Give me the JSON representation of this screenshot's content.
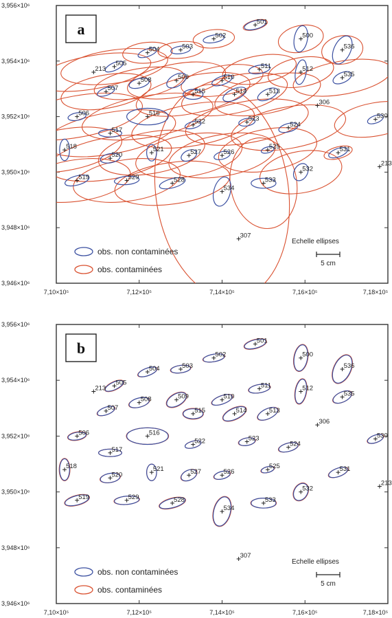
{
  "colors": {
    "blue": "#3a4fa0",
    "red": "#d9502f",
    "frame": "#333333"
  },
  "chart_data": [
    {
      "type": "scatter",
      "panel_label": "a",
      "xlim": [
        710000,
        718000
      ],
      "ylim": [
        3946000,
        3956000
      ],
      "x_ticks": [
        "7,10×10⁵",
        "7,12×10⁵",
        "7,14×10⁵",
        "7,16×10⁵",
        "7,18×10⁵"
      ],
      "y_ticks": [
        "3,956×10⁶",
        "3,954×10⁶",
        "3,952×10⁶",
        "3,950×10⁶",
        "3,948×10⁶",
        "3,946×10⁶"
      ],
      "legend": {
        "blue_label": "obs.  non contaminées",
        "red_label": "obs.  contaminées"
      },
      "scale": {
        "title": "Echelle ellipses",
        "label": "5 cm"
      },
      "points": [
        {
          "id": "501",
          "x": 714800,
          "y": 3955300,
          "bw": 0.27,
          "bh": 0.1,
          "ba": -15,
          "rw": 0.3,
          "rh": 0.11,
          "ra": -15
        },
        {
          "id": "502",
          "x": 713800,
          "y": 3954800,
          "bw": 0.26,
          "bh": 0.09,
          "ba": -10,
          "rw": 0.5,
          "rh": 0.22,
          "ra": -5
        },
        {
          "id": "503",
          "x": 713000,
          "y": 3954400,
          "bw": 0.24,
          "bh": 0.09,
          "ba": -8,
          "rw": 0.55,
          "rh": 0.2,
          "ra": -5
        },
        {
          "id": "504",
          "x": 712200,
          "y": 3954300,
          "bw": 0.24,
          "bh": 0.09,
          "ba": -20,
          "rw": 0.6,
          "rh": 0.25,
          "ra": -5
        },
        {
          "id": "505",
          "x": 711400,
          "y": 3953800,
          "bw": 0.24,
          "bh": 0.09,
          "ba": -25,
          "rw": 1.3,
          "rh": 0.4,
          "ra": -8
        },
        {
          "id": "500",
          "x": 715900,
          "y": 3954800,
          "bw": 0.16,
          "bh": 0.32,
          "ba": 10,
          "rw": 0.55,
          "rh": 0.32,
          "ra": -12
        },
        {
          "id": "536",
          "x": 716900,
          "y": 3954400,
          "bw": 0.2,
          "bh": 0.36,
          "ba": 25,
          "rw": 0.5,
          "rh": 0.34,
          "ra": -10
        },
        {
          "id": "213",
          "x": 710900,
          "y": 3953600,
          "bw": 0,
          "bh": 0,
          "ba": 0,
          "rw": 1.4,
          "rh": 0.4,
          "ra": -10
        },
        {
          "id": "508",
          "x": 712000,
          "y": 3953200,
          "bw": 0.25,
          "bh": 0.11,
          "ba": -15,
          "rw": 1.1,
          "rh": 0.35,
          "ra": -10
        },
        {
          "id": "509",
          "x": 712900,
          "y": 3953300,
          "bw": 0.26,
          "bh": 0.14,
          "ba": -30,
          "rw": 1.2,
          "rh": 0.4,
          "ra": -10
        },
        {
          "id": "510",
          "x": 714000,
          "y": 3953300,
          "bw": 0.26,
          "bh": 0.1,
          "ba": -20,
          "rw": 1.0,
          "rh": 0.35,
          "ra": -10
        },
        {
          "id": "511",
          "x": 714900,
          "y": 3953700,
          "bw": 0.26,
          "bh": 0.1,
          "ba": -10,
          "rw": 0.9,
          "rh": 0.33,
          "ra": -10
        },
        {
          "id": "512",
          "x": 715900,
          "y": 3953600,
          "bw": 0.13,
          "bh": 0.3,
          "ba": 10,
          "rw": 0.8,
          "rh": 0.35,
          "ra": -10
        },
        {
          "id": "535",
          "x": 716900,
          "y": 3953400,
          "bw": 0.24,
          "bh": 0.12,
          "ba": -25,
          "rw": 1.2,
          "rh": 0.4,
          "ra": -10
        },
        {
          "id": "507",
          "x": 711200,
          "y": 3952900,
          "bw": 0.22,
          "bh": 0.09,
          "ba": -20,
          "rw": 1.1,
          "rh": 0.4,
          "ra": -10
        },
        {
          "id": "515",
          "x": 713300,
          "y": 3952800,
          "bw": 0.24,
          "bh": 0.12,
          "ba": 0,
          "rw": 1.4,
          "rh": 0.45,
          "ra": -12
        },
        {
          "id": "514",
          "x": 714300,
          "y": 3952800,
          "bw": 0.3,
          "bh": 0.13,
          "ba": -25,
          "rw": 1.3,
          "rh": 0.45,
          "ra": -12
        },
        {
          "id": "513",
          "x": 715100,
          "y": 3952800,
          "bw": 0.26,
          "bh": 0.12,
          "ba": -25,
          "rw": 1.3,
          "rh": 0.45,
          "ra": -12
        },
        {
          "id": "306",
          "x": 716300,
          "y": 3952400,
          "bw": 0,
          "bh": 0,
          "ba": 0,
          "rw": 0,
          "rh": 0,
          "ra": 0
        },
        {
          "id": "506",
          "x": 710500,
          "y": 3952000,
          "bw": 0.22,
          "bh": 0.09,
          "ba": -10,
          "rw": 1.6,
          "rh": 0.5,
          "ra": -10
        },
        {
          "id": "516",
          "x": 712200,
          "y": 3952000,
          "bw": 0.5,
          "bh": 0.2,
          "ba": 0,
          "rw": 1.6,
          "rh": 0.5,
          "ra": -10
        },
        {
          "id": "522",
          "x": 713300,
          "y": 3951700,
          "bw": 0.2,
          "bh": 0.08,
          "ba": -15,
          "rw": 1.5,
          "rh": 0.5,
          "ra": -10
        },
        {
          "id": "523",
          "x": 714600,
          "y": 3951800,
          "bw": 0.2,
          "bh": 0.09,
          "ba": -10,
          "rw": 1.5,
          "rh": 0.5,
          "ra": -10
        },
        {
          "id": "524",
          "x": 715600,
          "y": 3951600,
          "bw": 0.24,
          "bh": 0.1,
          "ba": -15,
          "rw": 1.4,
          "rh": 0.5,
          "ra": -10
        },
        {
          "id": "530",
          "x": 717700,
          "y": 3951900,
          "bw": 0.2,
          "bh": 0.09,
          "ba": -20,
          "rw": 1.0,
          "rh": 0.4,
          "ra": -10
        },
        {
          "id": "517",
          "x": 711300,
          "y": 3951400,
          "bw": 0.28,
          "bh": 0.09,
          "ba": 0,
          "rw": 1.6,
          "rh": 0.5,
          "ra": -10
        },
        {
          "id": "518",
          "x": 710200,
          "y": 3950800,
          "bw": 0.12,
          "bh": 0.26,
          "ba": 0,
          "rw": 1.4,
          "rh": 0.5,
          "ra": -10
        },
        {
          "id": "520",
          "x": 711300,
          "y": 3950500,
          "bw": 0.24,
          "bh": 0.11,
          "ba": -10,
          "rw": 1.5,
          "rh": 0.5,
          "ra": -10
        },
        {
          "id": "521",
          "x": 712300,
          "y": 3950700,
          "bw": 0.12,
          "bh": 0.2,
          "ba": 0,
          "rw": 1.3,
          "rh": 0.5,
          "ra": -10
        },
        {
          "id": "527",
          "x": 713200,
          "y": 3950600,
          "bw": 0.2,
          "bh": 0.12,
          "ba": -25,
          "rw": 1.3,
          "rh": 0.5,
          "ra": -10
        },
        {
          "id": "526",
          "x": 714000,
          "y": 3950600,
          "bw": 0.2,
          "bh": 0.09,
          "ba": -15,
          "rw": 1.3,
          "rh": 0.5,
          "ra": -10
        },
        {
          "id": "525",
          "x": 715100,
          "y": 3950800,
          "bw": 0.16,
          "bh": 0.07,
          "ba": -15,
          "rw": 1.2,
          "rh": 0.5,
          "ra": -10
        },
        {
          "id": "531",
          "x": 716800,
          "y": 3950700,
          "bw": 0.24,
          "bh": 0.1,
          "ba": -20,
          "rw": 0.35,
          "rh": 0.14,
          "ra": -15
        },
        {
          "id": "532",
          "x": 715900,
          "y": 3950000,
          "bw": 0.16,
          "bh": 0.22,
          "ba": 30,
          "rw": 1.0,
          "rh": 0.5,
          "ra": -10
        },
        {
          "id": "213b",
          "label": "213",
          "x": 717800,
          "y": 3950200,
          "bw": 0,
          "bh": 0,
          "ba": 0,
          "rw": 0,
          "rh": 0,
          "ra": 0
        },
        {
          "id": "519",
          "x": 710500,
          "y": 3949700,
          "bw": 0.3,
          "bh": 0.11,
          "ba": -15,
          "rw": 1.3,
          "rh": 0.5,
          "ra": -8
        },
        {
          "id": "529",
          "x": 711700,
          "y": 3949700,
          "bw": 0.3,
          "bh": 0.1,
          "ba": -5,
          "rw": 1.3,
          "rh": 0.5,
          "ra": -8
        },
        {
          "id": "528",
          "x": 712800,
          "y": 3949600,
          "bw": 0.32,
          "bh": 0.11,
          "ba": -15,
          "rw": 1.4,
          "rh": 0.5,
          "ra": -8
        },
        {
          "id": "534",
          "x": 714000,
          "y": 3949300,
          "bw": 0.2,
          "bh": 0.36,
          "ba": 15,
          "rw": 1.6,
          "rh": 2.6,
          "ra": -8
        },
        {
          "id": "533",
          "x": 715000,
          "y": 3949600,
          "bw": 0.3,
          "bh": 0.12,
          "ba": 0,
          "rw": 0.8,
          "rh": 1.1,
          "ra": -10
        },
        {
          "id": "307",
          "x": 714400,
          "y": 3947600,
          "bw": 0,
          "bh": 0,
          "ba": 0,
          "rw": 0,
          "rh": 0,
          "ra": 0
        }
      ]
    },
    {
      "type": "scatter",
      "panel_label": "b",
      "xlim": [
        710000,
        718000
      ],
      "ylim": [
        3946000,
        3956000
      ],
      "x_ticks": [
        "7,10×10⁵",
        "7,12×10⁵",
        "7,14×10⁵",
        "7,16×10⁵",
        "7,18×10⁵"
      ],
      "y_ticks": [
        "3,956×10⁶",
        "3,954×10⁶",
        "3,952×10⁶",
        "3,950×10⁶",
        "3,948×10⁶",
        "3,946×10⁶"
      ],
      "legend": {
        "blue_label": "obs.  non contaminées",
        "red_label": "obs.  contaminées"
      },
      "scale": {
        "title": "Echelle ellipses",
        "label": "5 cm"
      },
      "points": [
        {
          "id": "501",
          "x": 714800,
          "y": 3955300,
          "bw": 0.27,
          "bh": 0.1,
          "ba": -15,
          "rw": 0.28,
          "rh": 0.11,
          "ra": -15
        },
        {
          "id": "502",
          "x": 713800,
          "y": 3954800,
          "bw": 0.26,
          "bh": 0.09,
          "ba": -10,
          "rw": 0.27,
          "rh": 0.09,
          "ra": -10
        },
        {
          "id": "503",
          "x": 713000,
          "y": 3954400,
          "bw": 0.24,
          "bh": 0.09,
          "ba": -8,
          "rw": 0.25,
          "rh": 0.09,
          "ra": -8
        },
        {
          "id": "504",
          "x": 712200,
          "y": 3954300,
          "bw": 0.24,
          "bh": 0.09,
          "ba": -20,
          "rw": 0.25,
          "rh": 0.09,
          "ra": -20
        },
        {
          "id": "505",
          "x": 711400,
          "y": 3953800,
          "bw": 0.24,
          "bh": 0.09,
          "ba": -25,
          "rw": 0.25,
          "rh": 0.1,
          "ra": -25
        },
        {
          "id": "500",
          "x": 715900,
          "y": 3954800,
          "bw": 0.16,
          "bh": 0.32,
          "ba": 10,
          "rw": 0.17,
          "rh": 0.33,
          "ra": 10
        },
        {
          "id": "536",
          "x": 716900,
          "y": 3954400,
          "bw": 0.2,
          "bh": 0.36,
          "ba": 25,
          "rw": 0.21,
          "rh": 0.37,
          "ra": 25
        },
        {
          "id": "213",
          "x": 710900,
          "y": 3953600,
          "bw": 0,
          "bh": 0,
          "ba": 0,
          "rw": 0,
          "rh": 0,
          "ra": 0
        },
        {
          "id": "508",
          "x": 712000,
          "y": 3953200,
          "bw": 0.25,
          "bh": 0.11,
          "ba": -15,
          "rw": 0.26,
          "rh": 0.11,
          "ra": -15
        },
        {
          "id": "509",
          "x": 712900,
          "y": 3953300,
          "bw": 0.26,
          "bh": 0.14,
          "ba": -30,
          "rw": 0.27,
          "rh": 0.15,
          "ra": -30
        },
        {
          "id": "510",
          "x": 714000,
          "y": 3953300,
          "bw": 0.26,
          "bh": 0.1,
          "ba": -20,
          "rw": 0.27,
          "rh": 0.1,
          "ra": -20
        },
        {
          "id": "511",
          "x": 714900,
          "y": 3953700,
          "bw": 0.26,
          "bh": 0.1,
          "ba": -10,
          "rw": 0.27,
          "rh": 0.1,
          "ra": -10
        },
        {
          "id": "512",
          "x": 715900,
          "y": 3953600,
          "bw": 0.13,
          "bh": 0.3,
          "ba": 10,
          "rw": 0.14,
          "rh": 0.31,
          "ra": 10
        },
        {
          "id": "535",
          "x": 716900,
          "y": 3953400,
          "bw": 0.24,
          "bh": 0.12,
          "ba": -25,
          "rw": 0.25,
          "rh": 0.12,
          "ra": -25
        },
        {
          "id": "507",
          "x": 711200,
          "y": 3952900,
          "bw": 0.22,
          "bh": 0.09,
          "ba": -20,
          "rw": 0.23,
          "rh": 0.09,
          "ra": -20
        },
        {
          "id": "515",
          "x": 713300,
          "y": 3952800,
          "bw": 0.24,
          "bh": 0.12,
          "ba": 0,
          "rw": 0.25,
          "rh": 0.13,
          "ra": 0
        },
        {
          "id": "514",
          "x": 714300,
          "y": 3952800,
          "bw": 0.3,
          "bh": 0.13,
          "ba": -25,
          "rw": 0.31,
          "rh": 0.14,
          "ra": -25
        },
        {
          "id": "513",
          "x": 715100,
          "y": 3952800,
          "bw": 0.26,
          "bh": 0.12,
          "ba": -25,
          "rw": 0.27,
          "rh": 0.12,
          "ra": -25
        },
        {
          "id": "306",
          "x": 716300,
          "y": 3952400,
          "bw": 0,
          "bh": 0,
          "ba": 0,
          "rw": 0,
          "rh": 0,
          "ra": 0
        },
        {
          "id": "506",
          "x": 710500,
          "y": 3952000,
          "bw": 0.22,
          "bh": 0.09,
          "ba": -10,
          "rw": 0.23,
          "rh": 0.1,
          "ra": -10
        },
        {
          "id": "516",
          "x": 712200,
          "y": 3952000,
          "bw": 0.5,
          "bh": 0.2,
          "ba": 0,
          "rw": 0.51,
          "rh": 0.2,
          "ra": 0
        },
        {
          "id": "522",
          "x": 713300,
          "y": 3951700,
          "bw": 0.2,
          "bh": 0.08,
          "ba": -15,
          "rw": 0.2,
          "rh": 0.08,
          "ra": -15
        },
        {
          "id": "523",
          "x": 714600,
          "y": 3951800,
          "bw": 0.2,
          "bh": 0.09,
          "ba": -10,
          "rw": 0.21,
          "rh": 0.09,
          "ra": -10
        },
        {
          "id": "524",
          "x": 715600,
          "y": 3951600,
          "bw": 0.24,
          "bh": 0.1,
          "ba": -15,
          "rw": 0.25,
          "rh": 0.1,
          "ra": -15
        },
        {
          "id": "530",
          "x": 717700,
          "y": 3951900,
          "bw": 0.2,
          "bh": 0.09,
          "ba": -20,
          "rw": 0.21,
          "rh": 0.09,
          "ra": -20
        },
        {
          "id": "517",
          "x": 711300,
          "y": 3951400,
          "bw": 0.28,
          "bh": 0.09,
          "ba": 0,
          "rw": 0.28,
          "rh": 0.09,
          "ra": 0
        },
        {
          "id": "518",
          "x": 710200,
          "y": 3950800,
          "bw": 0.12,
          "bh": 0.26,
          "ba": 0,
          "rw": 0.13,
          "rh": 0.27,
          "ra": 0
        },
        {
          "id": "520",
          "x": 711300,
          "y": 3950500,
          "bw": 0.24,
          "bh": 0.11,
          "ba": -10,
          "rw": 0.25,
          "rh": 0.11,
          "ra": -10
        },
        {
          "id": "521",
          "x": 712300,
          "y": 3950700,
          "bw": 0.12,
          "bh": 0.2,
          "ba": 0,
          "rw": 0.12,
          "rh": 0.2,
          "ra": 0
        },
        {
          "id": "527",
          "x": 713200,
          "y": 3950600,
          "bw": 0.2,
          "bh": 0.12,
          "ba": -25,
          "rw": 0.21,
          "rh": 0.12,
          "ra": -25
        },
        {
          "id": "526",
          "x": 714000,
          "y": 3950600,
          "bw": 0.2,
          "bh": 0.09,
          "ba": -15,
          "rw": 0.21,
          "rh": 0.09,
          "ra": -15
        },
        {
          "id": "525",
          "x": 715100,
          "y": 3950800,
          "bw": 0.16,
          "bh": 0.07,
          "ba": -15,
          "rw": 0.17,
          "rh": 0.07,
          "ra": -15
        },
        {
          "id": "531",
          "x": 716800,
          "y": 3950700,
          "bw": 0.24,
          "bh": 0.1,
          "ba": -20,
          "rw": 0.25,
          "rh": 0.1,
          "ra": -20
        },
        {
          "id": "532",
          "x": 715900,
          "y": 3950000,
          "bw": 0.16,
          "bh": 0.22,
          "ba": 30,
          "rw": 0.17,
          "rh": 0.23,
          "ra": 30
        },
        {
          "id": "213b",
          "label": "213",
          "x": 717800,
          "y": 3950200,
          "bw": 0,
          "bh": 0,
          "ba": 0,
          "rw": 0,
          "rh": 0,
          "ra": 0
        },
        {
          "id": "519",
          "x": 710500,
          "y": 3949700,
          "bw": 0.3,
          "bh": 0.11,
          "ba": -15,
          "rw": 0.31,
          "rh": 0.12,
          "ra": -15
        },
        {
          "id": "529",
          "x": 711700,
          "y": 3949700,
          "bw": 0.3,
          "bh": 0.1,
          "ba": -5,
          "rw": 0.31,
          "rh": 0.1,
          "ra": -5
        },
        {
          "id": "528",
          "x": 712800,
          "y": 3949600,
          "bw": 0.32,
          "bh": 0.11,
          "ba": -15,
          "rw": 0.33,
          "rh": 0.12,
          "ra": -15
        },
        {
          "id": "534",
          "x": 714000,
          "y": 3949300,
          "bw": 0.2,
          "bh": 0.36,
          "ba": 15,
          "rw": 0.21,
          "rh": 0.37,
          "ra": 15
        },
        {
          "id": "533",
          "x": 715000,
          "y": 3949600,
          "bw": 0.3,
          "bh": 0.12,
          "ba": 0,
          "rw": 0.31,
          "rh": 0.12,
          "ra": 0
        },
        {
          "id": "307",
          "x": 714400,
          "y": 3947600,
          "bw": 0,
          "bh": 0,
          "ba": 0,
          "rw": 0,
          "rh": 0,
          "ra": 0
        }
      ]
    }
  ]
}
